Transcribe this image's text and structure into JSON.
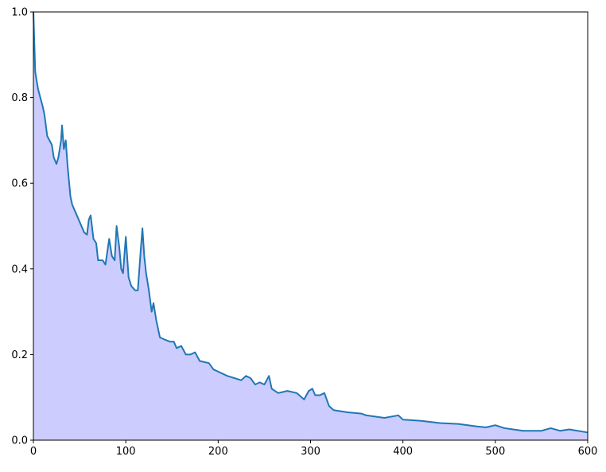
{
  "chart_data": {
    "type": "area",
    "title": "",
    "xlabel": "",
    "ylabel": "",
    "xlim": [
      0,
      600
    ],
    "ylim": [
      0,
      1
    ],
    "grid": false,
    "x_ticks": [
      0,
      100,
      200,
      300,
      400,
      500,
      600
    ],
    "x_tick_labels": [
      "0",
      "100",
      "200",
      "300",
      "400",
      "500",
      "600"
    ],
    "y_ticks": [
      0,
      0.2,
      0.4,
      0.6,
      0.8,
      1.0
    ],
    "y_tick_labels": [
      "0.0",
      "0.2",
      "0.4",
      "0.6",
      "0.8",
      "1.0"
    ],
    "line_color": "#1f77b4",
    "fill_color": "#ccccff",
    "series": [
      {
        "x": [
          0,
          2,
          5,
          10,
          12,
          15,
          20,
          22,
          25,
          27,
          30,
          31,
          33,
          35,
          37,
          40,
          42,
          45,
          50,
          55,
          58,
          60,
          62,
          65,
          68,
          70,
          75,
          78,
          82,
          85,
          88,
          90,
          93,
          95,
          97,
          100,
          103,
          106,
          110,
          113,
          116,
          118,
          120,
          122,
          125,
          128,
          130,
          133,
          137,
          142,
          148,
          152,
          155,
          160,
          165,
          170,
          175,
          180,
          190,
          195,
          200,
          210,
          225,
          230,
          235,
          240,
          245,
          250,
          255,
          258,
          265,
          275,
          285,
          293,
          298,
          302,
          305,
          310,
          315,
          320,
          325,
          340,
          355,
          360,
          380,
          395,
          400,
          420,
          440,
          460,
          480,
          490,
          500,
          510,
          530,
          550,
          560,
          570,
          580,
          600
        ],
        "y": [
          1.0,
          0.86,
          0.82,
          0.78,
          0.76,
          0.71,
          0.69,
          0.66,
          0.645,
          0.66,
          0.7,
          0.735,
          0.68,
          0.7,
          0.64,
          0.57,
          0.55,
          0.535,
          0.51,
          0.485,
          0.48,
          0.515,
          0.525,
          0.47,
          0.46,
          0.42,
          0.42,
          0.41,
          0.47,
          0.43,
          0.42,
          0.5,
          0.45,
          0.4,
          0.39,
          0.475,
          0.38,
          0.36,
          0.35,
          0.35,
          0.44,
          0.495,
          0.43,
          0.39,
          0.35,
          0.3,
          0.32,
          0.28,
          0.24,
          0.235,
          0.23,
          0.23,
          0.215,
          0.22,
          0.2,
          0.2,
          0.205,
          0.185,
          0.18,
          0.165,
          0.16,
          0.15,
          0.14,
          0.15,
          0.145,
          0.13,
          0.135,
          0.13,
          0.15,
          0.12,
          0.11,
          0.115,
          0.11,
          0.095,
          0.115,
          0.12,
          0.105,
          0.105,
          0.11,
          0.08,
          0.07,
          0.065,
          0.062,
          0.058,
          0.052,
          0.058,
          0.048,
          0.045,
          0.04,
          0.038,
          0.032,
          0.03,
          0.035,
          0.028,
          0.022,
          0.022,
          0.028,
          0.022,
          0.025,
          0.018
        ]
      }
    ]
  }
}
